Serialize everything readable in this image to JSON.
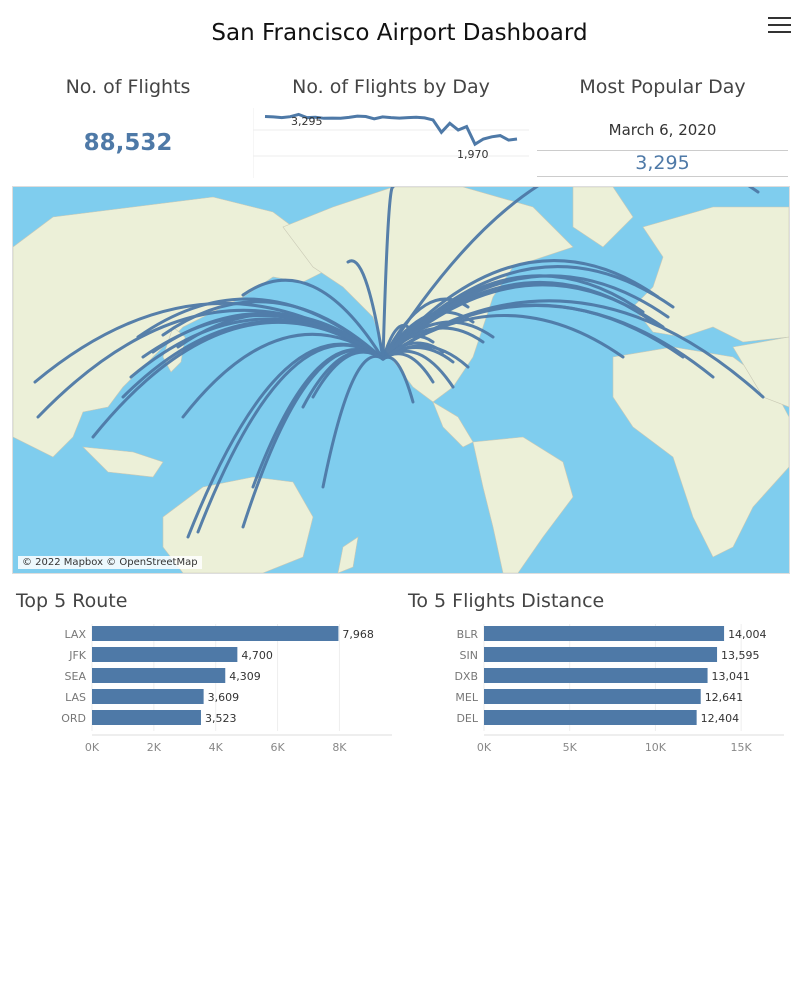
{
  "title": "San Francisco Airport Dashboard",
  "kpis": {
    "flights_label": "No. of Flights",
    "flights_value": "88,532",
    "by_day_label": "No. of Flights by Day",
    "popular_label": "Most Popular Day",
    "popular_date": "March 6, 2020",
    "popular_value": "3,295"
  },
  "sparkline": {
    "max_label": "3,295",
    "min_label": "1,970",
    "values": [
      3200,
      3180,
      3150,
      3190,
      3295,
      3150,
      3170,
      3120,
      3130,
      3120,
      3160,
      3220,
      3200,
      3100,
      3180,
      3150,
      3130,
      3150,
      3170,
      3140,
      3050,
      2500,
      2900,
      2600,
      2750,
      1970,
      2200,
      2300,
      2350,
      2150,
      2200
    ]
  },
  "map": {
    "attribution": "© 2022 Mapbox © OpenStreetMap",
    "route_color": "#4e79a7",
    "land_color": "#ecf0d8",
    "water_color": "#7fcdee"
  },
  "top_routes": {
    "title": "Top 5 Route",
    "chart_data": {
      "type": "bar",
      "categories": [
        "LAX",
        "JFK",
        "SEA",
        "LAS",
        "ORD"
      ],
      "values": [
        7968,
        4700,
        4309,
        3609,
        3523
      ],
      "value_labels": [
        "7,968",
        "4,700",
        "4,309",
        "3,609",
        "3,523"
      ],
      "ticks": [
        "0K",
        "2K",
        "4K",
        "6K",
        "8K"
      ],
      "tick_values": [
        0,
        2000,
        4000,
        6000,
        8000
      ],
      "xlim": [
        0,
        9700
      ],
      "color": "#4e79a7"
    }
  },
  "top_distance": {
    "title": "To 5 Flights Distance",
    "chart_data": {
      "type": "bar",
      "categories": [
        "BLR",
        "SIN",
        "DXB",
        "MEL",
        "DEL"
      ],
      "values": [
        14004,
        13595,
        13041,
        12641,
        12404
      ],
      "value_labels": [
        "14,004",
        "13,595",
        "13,041",
        "12,641",
        "12,404"
      ],
      "ticks": [
        "0K",
        "5K",
        "10K",
        "15K"
      ],
      "tick_values": [
        0,
        5000,
        10000,
        15000
      ],
      "xlim": [
        0,
        17500
      ],
      "color": "#4e79a7"
    }
  }
}
